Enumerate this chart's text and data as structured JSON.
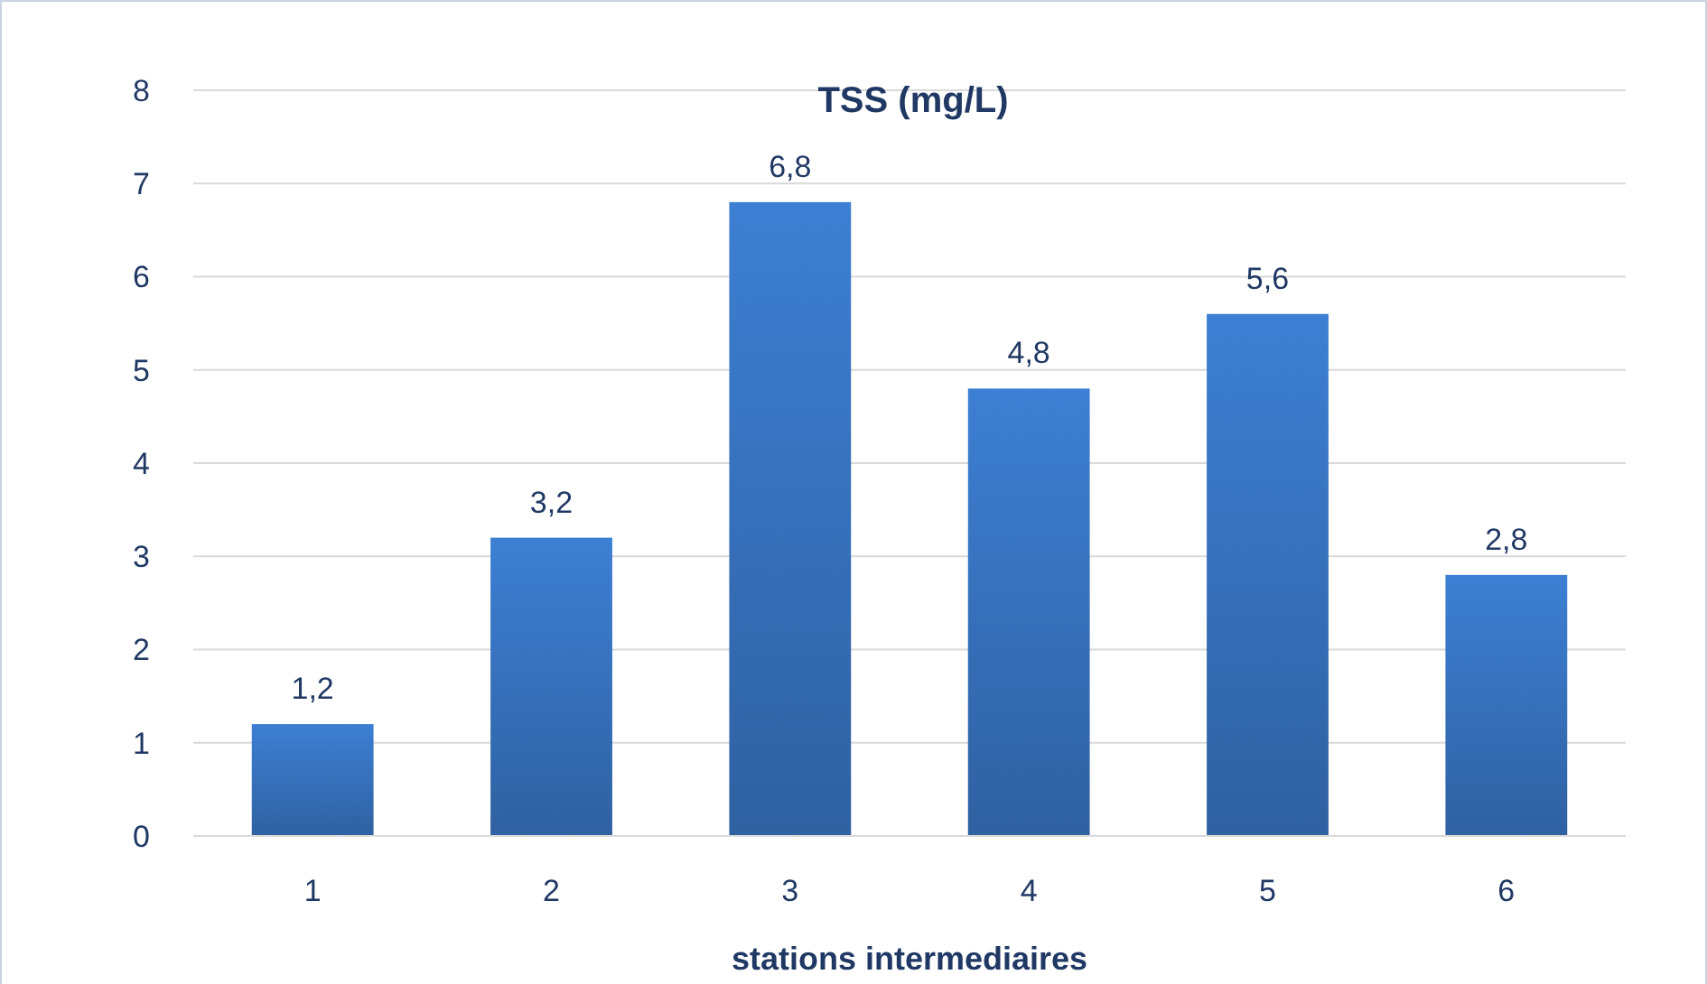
{
  "chart_data": {
    "type": "bar",
    "title": "TSS (mg/L)",
    "xlabel": "stations intermediaires",
    "categories": [
      "1",
      "2",
      "3",
      "4",
      "5",
      "6"
    ],
    "values": [
      1.2,
      3.2,
      6.8,
      4.8,
      5.6,
      2.8
    ],
    "value_labels": [
      "1,2",
      "3,2",
      "6,8",
      "4,8",
      "5,6",
      "2,8"
    ],
    "color": "#3a78c8",
    "ylim": [
      0,
      8
    ],
    "yticks": [
      0,
      1,
      2,
      3,
      4,
      5,
      6,
      7,
      8
    ],
    "grid": "y"
  }
}
